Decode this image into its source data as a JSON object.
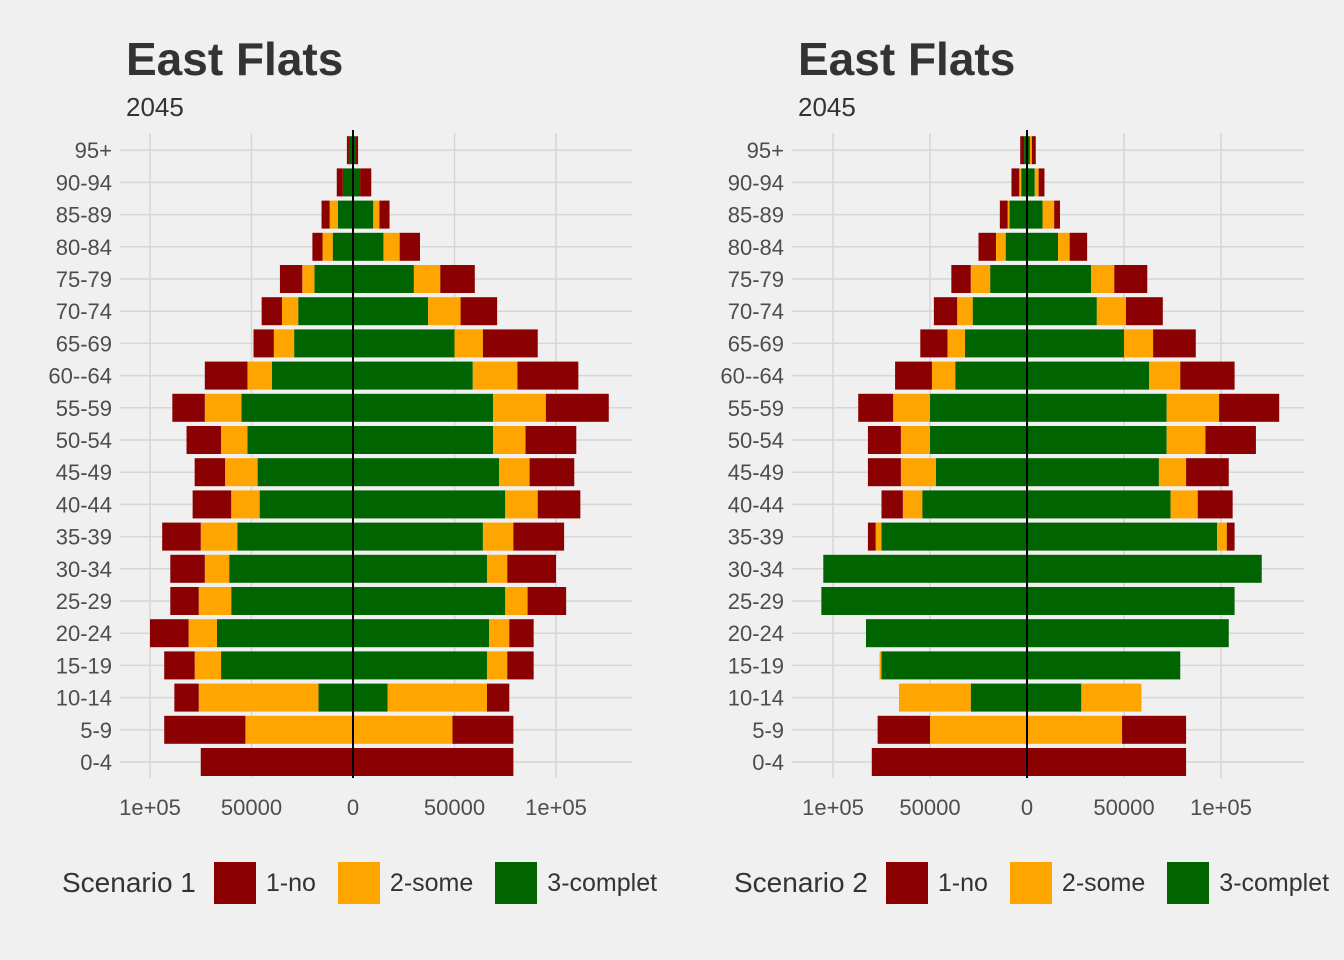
{
  "colors": {
    "1-no": "#8b0000",
    "2-some": "#ffa500",
    "3-complet": "#006400",
    "grid": "#d6d6d6",
    "text": "#4d4d4d",
    "zero_line": "#000000"
  },
  "panels": [
    {
      "title": "East Flats",
      "subtitle": "2045",
      "legend_title": "Scenario 1",
      "legend_labels": [
        "1-no",
        "2-some",
        "3-complet"
      ]
    },
    {
      "title": "East Flats",
      "subtitle": "2045",
      "legend_title": "Scenario 2",
      "legend_labels": [
        "1-no",
        "2-some",
        "3-complet"
      ]
    }
  ],
  "chart_data": [
    {
      "type": "bar",
      "orientation": "horizontal-population-pyramid",
      "title": "East Flats",
      "subtitle": "2045",
      "categories": [
        "0-4",
        "5-9",
        "10-14",
        "15-19",
        "20-24",
        "25-29",
        "30-34",
        "35-39",
        "40-44",
        "45-49",
        "50-54",
        "55-59",
        "60--64",
        "65-69",
        "70-74",
        "75-79",
        "80-84",
        "85-89",
        "90-94",
        "95+"
      ],
      "xlim": [
        -130000,
        135000
      ],
      "x_ticks": [
        -100000,
        -50000,
        0,
        50000,
        100000
      ],
      "x_tick_labels": [
        "1e+05",
        "50000",
        "0",
        "50000",
        "1e+05"
      ],
      "grid": true,
      "legend": {
        "title": "Scenario 1",
        "position": "bottom"
      },
      "series": [
        {
          "name": "3-complet",
          "left": [
            0,
            0,
            17000,
            65000,
            67000,
            60000,
            61000,
            57000,
            46000,
            47000,
            52000,
            55000,
            40000,
            29000,
            27000,
            19000,
            10000,
            7500,
            5000,
            2000
          ],
          "right": [
            0,
            0,
            17000,
            66000,
            67000,
            75000,
            66000,
            64000,
            75000,
            72000,
            69000,
            69000,
            59000,
            50000,
            37000,
            30000,
            15000,
            10000,
            3500,
            1500
          ]
        },
        {
          "name": "2-some",
          "left": [
            0,
            53000,
            59000,
            13000,
            14000,
            16000,
            12000,
            18000,
            14000,
            16000,
            13000,
            18000,
            12000,
            10000,
            8000,
            6000,
            5000,
            4000,
            0,
            0
          ],
          "right": [
            0,
            49000,
            49000,
            10000,
            10000,
            11000,
            10000,
            15000,
            16000,
            15000,
            16000,
            26000,
            22000,
            14000,
            16000,
            13000,
            8000,
            3000,
            0,
            0
          ]
        },
        {
          "name": "1-no",
          "left": [
            75000,
            40000,
            12000,
            15000,
            19000,
            14000,
            17000,
            19000,
            19000,
            15000,
            17000,
            16000,
            21000,
            10000,
            10000,
            11000,
            5000,
            4000,
            3000,
            1000
          ],
          "right": [
            79000,
            30000,
            11000,
            13000,
            12000,
            19000,
            24000,
            25000,
            21000,
            22000,
            25000,
            31000,
            30000,
            27000,
            18000,
            17000,
            10000,
            5000,
            5500,
            1000
          ]
        }
      ]
    },
    {
      "type": "bar",
      "orientation": "horizontal-population-pyramid",
      "title": "East Flats",
      "subtitle": "2045",
      "categories": [
        "0-4",
        "5-9",
        "10-14",
        "15-19",
        "20-24",
        "25-29",
        "30-34",
        "35-39",
        "40-44",
        "45-49",
        "50-54",
        "55-59",
        "60--64",
        "65-69",
        "70-74",
        "75-79",
        "80-84",
        "85-89",
        "90-94",
        "95+"
      ],
      "xlim": [
        -110000,
        142000
      ],
      "x_ticks": [
        -100000,
        -50000,
        0,
        50000,
        100000
      ],
      "x_tick_labels": [
        "1e+05",
        "50000",
        "0",
        "50000",
        "1e+05"
      ],
      "grid": true,
      "legend": {
        "title": "Scenario 2",
        "position": "bottom"
      },
      "series": [
        {
          "name": "3-complet",
          "left": [
            0,
            0,
            29000,
            75000,
            83000,
            106000,
            105000,
            75000,
            54000,
            47000,
            50000,
            50000,
            37000,
            32000,
            28000,
            19000,
            11000,
            9000,
            3000,
            1500
          ],
          "right": [
            0,
            0,
            28000,
            79000,
            104000,
            107000,
            121000,
            98000,
            74000,
            68000,
            72000,
            72000,
            63000,
            50000,
            36000,
            33000,
            16000,
            8000,
            4000,
            1500
          ]
        },
        {
          "name": "2-some",
          "left": [
            0,
            50000,
            37000,
            1000,
            0,
            0,
            0,
            3000,
            10000,
            18000,
            15000,
            19000,
            12000,
            9000,
            8000,
            10000,
            5000,
            1000,
            1000,
            0
          ],
          "right": [
            0,
            49000,
            31000,
            0,
            0,
            0,
            0,
            5000,
            14000,
            14000,
            20000,
            27000,
            16000,
            15000,
            15000,
            12000,
            6000,
            6000,
            2000,
            1000
          ]
        },
        {
          "name": "1-no",
          "left": [
            80000,
            27000,
            0,
            0,
            0,
            0,
            0,
            4000,
            11000,
            17000,
            17000,
            18000,
            19000,
            14000,
            12000,
            10000,
            9000,
            4000,
            4000,
            2000
          ],
          "right": [
            82000,
            33000,
            0,
            0,
            0,
            0,
            0,
            4000,
            18000,
            22000,
            26000,
            31000,
            28000,
            22000,
            19000,
            17000,
            9000,
            3000,
            3000,
            2000
          ]
        }
      ]
    }
  ]
}
